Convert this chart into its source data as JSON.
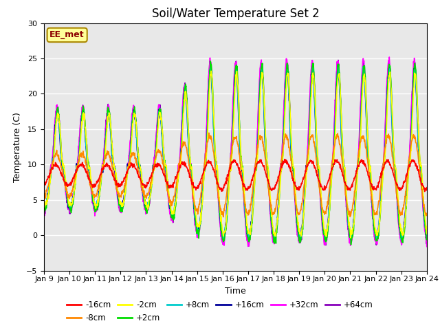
{
  "title": "Soil/Water Temperature Set 2",
  "xlabel": "Time",
  "ylabel": "Temperature (C)",
  "ylim": [
    -5,
    30
  ],
  "xtick_labels": [
    "Jan 9",
    "Jan 10",
    "Jan 11",
    "Jan 12",
    "Jan 13",
    "Jan 14",
    "Jan 15",
    "Jan 16",
    "Jan 17",
    "Jan 18",
    "Jan 19",
    "Jan 20",
    "Jan 21",
    "Jan 22",
    "Jan 23",
    "Jan 24"
  ],
  "series": [
    {
      "label": "-16cm",
      "color": "#ff0000",
      "lw": 1.2
    },
    {
      "label": "-8cm",
      "color": "#ff8800",
      "lw": 1.2
    },
    {
      "label": "-2cm",
      "color": "#ffff00",
      "lw": 1.2
    },
    {
      "label": "+2cm",
      "color": "#00dd00",
      "lw": 1.2
    },
    {
      "label": "+8cm",
      "color": "#00cccc",
      "lw": 1.2
    },
    {
      "label": "+16cm",
      "color": "#000099",
      "lw": 1.2
    },
    {
      "label": "+32cm",
      "color": "#ff00ff",
      "lw": 1.2
    },
    {
      "label": "+64cm",
      "color": "#8800bb",
      "lw": 1.2
    }
  ],
  "legend_title": "EE_met",
  "bg_color": "#e8e8e8",
  "fig_bg": "#ffffff",
  "grid_color": "#ffffff",
  "title_fontsize": 12,
  "label_fontsize": 9,
  "tick_fontsize": 8
}
